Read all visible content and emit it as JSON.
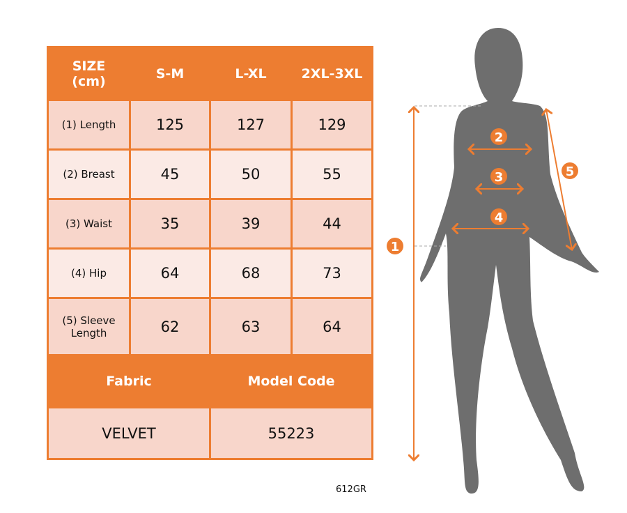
{
  "table": {
    "header": [
      "SIZE\n(cm)",
      "S-M",
      "L-XL",
      "2XL-3XL"
    ],
    "header_line1": "SIZE",
    "header_line2": "(cm)",
    "rows": [
      {
        "label": "(1) Length",
        "values": [
          "125",
          "127",
          "129"
        ]
      },
      {
        "label": "(2) Breast",
        "values": [
          "45",
          "50",
          "55"
        ]
      },
      {
        "label": "(3) Waist",
        "values": [
          "35",
          "39",
          "44"
        ]
      },
      {
        "label": "(4) Hip",
        "values": [
          "64",
          "68",
          "73"
        ]
      },
      {
        "label_line1": "(5) Sleeve",
        "label_line2": "Length",
        "values": [
          "62",
          "63",
          "64"
        ]
      }
    ],
    "fabric_label": "Fabric",
    "model_code_label": "Model Code",
    "fabric_value": "VELVET",
    "model_code_value": "55223"
  },
  "product_code": "612GR",
  "diagram": {
    "markers": [
      "1",
      "2",
      "3",
      "4",
      "5"
    ]
  },
  "colors": {
    "accent": "#ED7D31",
    "row_dark": "#F8D6CB",
    "row_light": "#FBEAE5",
    "silhouette": "#6E6E6E"
  }
}
